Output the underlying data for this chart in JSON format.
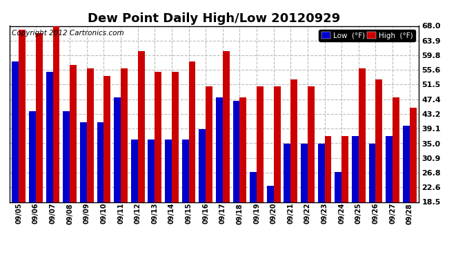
{
  "title": "Dew Point Daily High/Low 20120929",
  "copyright": "Copyright 2012 Cartronics.com",
  "dates": [
    "09/05",
    "09/06",
    "09/07",
    "09/08",
    "09/09",
    "09/10",
    "09/11",
    "09/12",
    "09/13",
    "09/14",
    "09/15",
    "09/16",
    "09/17",
    "09/18",
    "09/19",
    "09/20",
    "09/21",
    "09/22",
    "09/23",
    "09/24",
    "09/25",
    "09/26",
    "09/27",
    "09/28"
  ],
  "low_values": [
    58.0,
    44.0,
    55.0,
    44.0,
    41.0,
    41.0,
    48.0,
    36.0,
    36.0,
    36.0,
    36.0,
    39.0,
    48.0,
    47.0,
    27.0,
    23.0,
    35.0,
    35.0,
    35.0,
    27.0,
    37.0,
    35.0,
    37.0,
    40.0
  ],
  "high_values": [
    67.0,
    66.0,
    68.0,
    57.0,
    56.0,
    54.0,
    56.0,
    61.0,
    55.0,
    55.0,
    58.0,
    51.0,
    61.0,
    48.0,
    51.0,
    51.0,
    53.0,
    51.0,
    37.0,
    37.0,
    56.0,
    53.0,
    48.0,
    45.0
  ],
  "low_color": "#0000cc",
  "high_color": "#cc0000",
  "bg_color": "#ffffff",
  "grid_color": "#bbbbbb",
  "yticks": [
    18.5,
    22.6,
    26.8,
    30.9,
    35.0,
    39.1,
    43.2,
    47.4,
    51.5,
    55.6,
    59.8,
    63.9,
    68.0
  ],
  "ymin": 18.5,
  "ymax": 68.0,
  "title_fontsize": 13,
  "copyright_fontsize": 7.5
}
